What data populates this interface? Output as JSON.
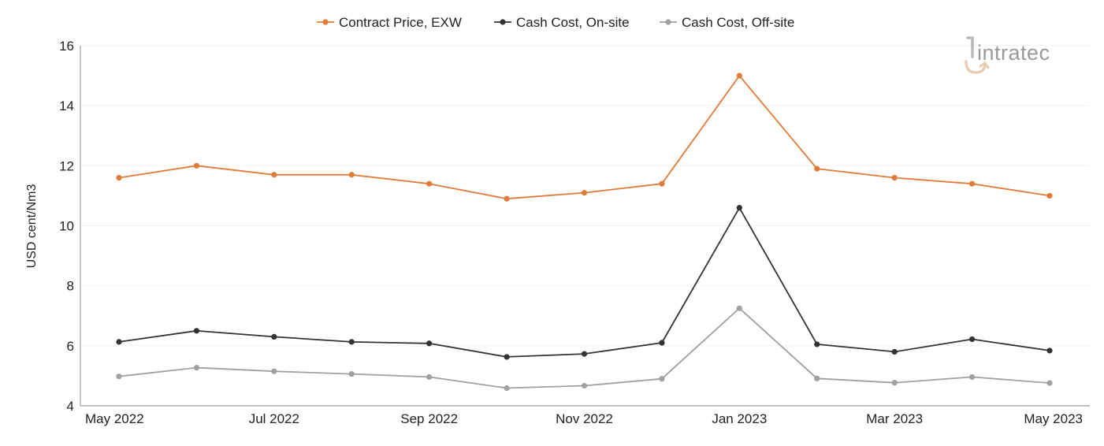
{
  "brand": {
    "logo_text": "intratec",
    "logo_color": "#9a9a9a",
    "logo_accent": "#e8cdb5"
  },
  "chart_data": {
    "type": "line",
    "title": "",
    "xlabel": "",
    "ylabel": "USD cent/Nm3",
    "ylim": [
      4,
      16
    ],
    "yticks": [
      4,
      6,
      8,
      10,
      12,
      14,
      16
    ],
    "grid": true,
    "legend_position": "top-center",
    "x": [
      "May 2022",
      "Jun 2022",
      "Jul 2022",
      "Aug 2022",
      "Sep 2022",
      "Oct 2022",
      "Nov 2022",
      "Dec 2022",
      "Jan 2023",
      "Feb 2023",
      "Mar 2023",
      "Apr 2023",
      "May 2023"
    ],
    "x_tick_labels": [
      "May 2022",
      "",
      "Jul 2022",
      "",
      "Sep 2022",
      "",
      "Nov 2022",
      "",
      "Jan 2023",
      "",
      "Mar 2023",
      "",
      "May 2023"
    ],
    "series": [
      {
        "name": "Contract Price, EXW",
        "color": "#e07b39",
        "values": [
          11.6,
          12.0,
          11.7,
          11.7,
          11.4,
          10.9,
          11.1,
          11.4,
          15.0,
          11.9,
          11.6,
          11.4,
          11.0
        ]
      },
      {
        "name": "Cash Cost, On-site",
        "color": "#333333",
        "values": [
          6.13,
          6.5,
          6.3,
          6.13,
          6.08,
          5.63,
          5.73,
          6.1,
          10.6,
          6.05,
          5.8,
          6.22,
          5.84
        ]
      },
      {
        "name": "Cash Cost, Off-site",
        "color": "#a0a0a0",
        "values": [
          4.98,
          5.27,
          5.15,
          5.06,
          4.96,
          4.59,
          4.67,
          4.9,
          7.25,
          4.91,
          4.77,
          4.96,
          4.76
        ]
      }
    ]
  }
}
